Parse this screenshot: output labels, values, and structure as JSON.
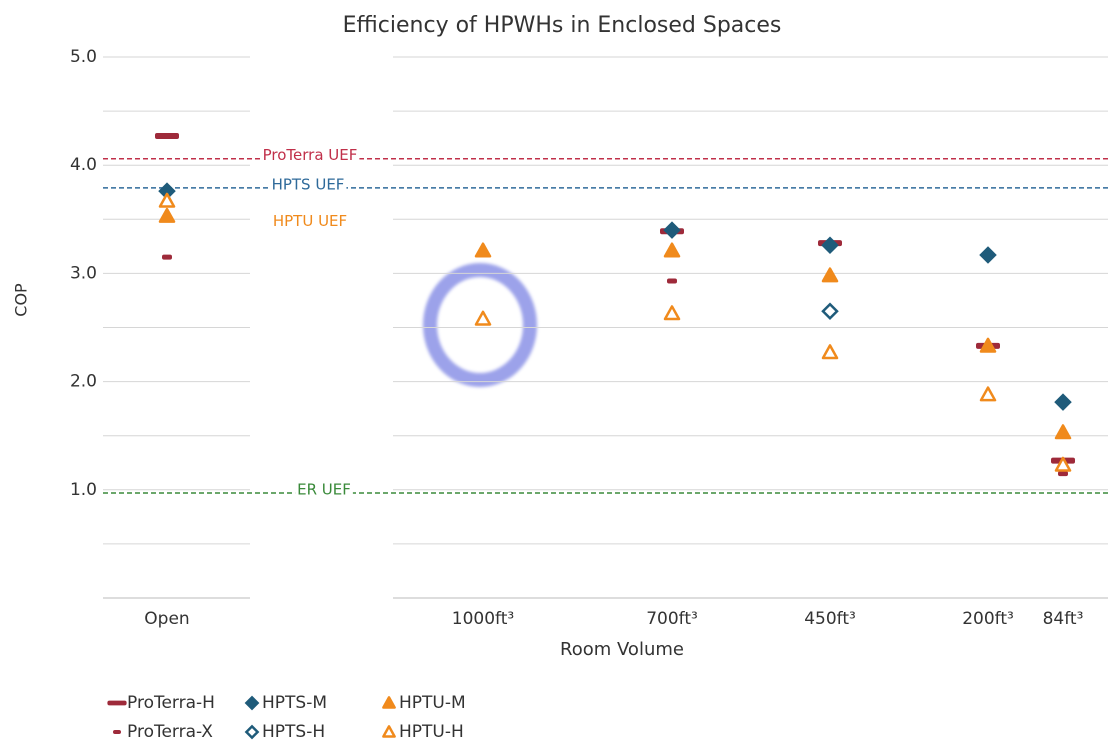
{
  "chart_data": {
    "type": "scatter",
    "title": "Efficiency of HPWHs in Enclosed Spaces",
    "x_label": "Room Volume",
    "y_label": "COP",
    "categories": [
      "Open",
      "1000ft³",
      "700ft³",
      "450ft³",
      "200ft³",
      "84ft³"
    ],
    "ylim": [
      0,
      5
    ],
    "yticks": [
      {
        "value": 1,
        "label": "1.0"
      },
      {
        "value": 2,
        "label": "2.0"
      },
      {
        "value": 3,
        "label": "3.0"
      },
      {
        "value": 4,
        "label": "4.0"
      },
      {
        "value": 5,
        "label": "5.0"
      }
    ],
    "minor_yticks": [
      0.5,
      1.5,
      2.5,
      3.5,
      4.5
    ],
    "grid": true,
    "series": [
      {
        "name": "ProTerra-H",
        "color": "#9e2a3a",
        "marker": "dash",
        "filled": true,
        "values": [
          4.27,
          null,
          3.39,
          3.28,
          2.33,
          1.27
        ]
      },
      {
        "name": "ProTerra-X",
        "color": "#9e2a3a",
        "marker": "small-dash",
        "filled": true,
        "values": [
          3.15,
          null,
          2.93,
          null,
          null,
          1.15
        ]
      },
      {
        "name": "HPTS-M",
        "color": "#1f5b7a",
        "marker": "diamond",
        "filled": true,
        "values": [
          3.76,
          null,
          3.4,
          3.26,
          3.17,
          1.81
        ]
      },
      {
        "name": "HPTS-H",
        "color": "#1f5b7a",
        "marker": "diamond",
        "filled": false,
        "values": [
          null,
          null,
          null,
          2.65,
          null,
          null
        ]
      },
      {
        "name": "HPTU-M",
        "color": "#f08a1c",
        "marker": "triangle",
        "filled": true,
        "values": [
          3.53,
          3.21,
          3.21,
          2.98,
          2.33,
          1.53
        ]
      },
      {
        "name": "HPTU-H",
        "color": "#f08a1c",
        "marker": "triangle",
        "filled": false,
        "values": [
          3.67,
          2.58,
          2.63,
          2.27,
          1.88,
          1.23
        ]
      }
    ],
    "reference_lines": [
      {
        "label": "ProTerra UEF",
        "value": 4.06,
        "color": "#c0304a",
        "line": true
      },
      {
        "label": "HPTS UEF",
        "value": 3.79,
        "color": "#2f6a9a",
        "line": true
      },
      {
        "label": "HPTU UEF",
        "value": 3.45,
        "color": "#f08a1c",
        "line": false
      },
      {
        "label": "ER UEF",
        "value": 0.97,
        "color": "#3a8a3a",
        "line": true
      }
    ]
  }
}
